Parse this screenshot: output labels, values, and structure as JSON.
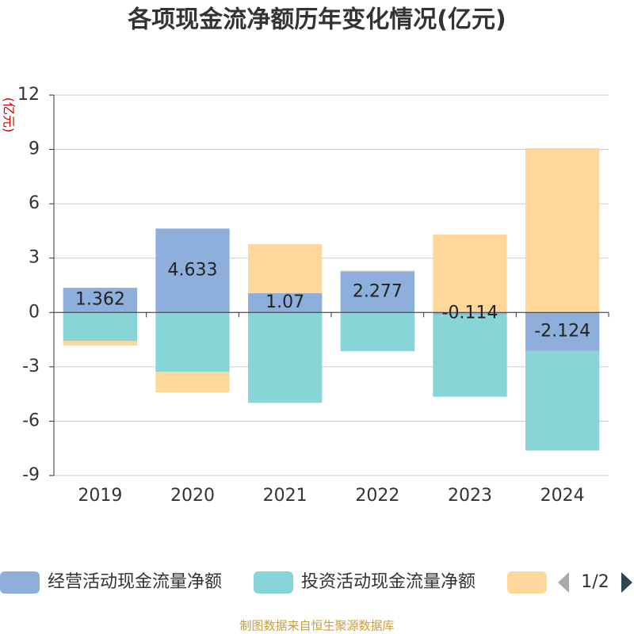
{
  "chart_data": {
    "type": "bar",
    "stacked": true,
    "title": "各项现金流净额历年变化情况(亿元)",
    "y_label": "(亿元)",
    "categories": [
      "2019",
      "2020",
      "2021",
      "2022",
      "2023",
      "2024"
    ],
    "series": [
      {
        "name": "经营活动现金流量净额",
        "color": "#8eaedb",
        "values": [
          1.362,
          4.633,
          1.07,
          2.277,
          -0.114,
          -2.124
        ]
      },
      {
        "name": "投资活动现金流量净额",
        "color": "#88d5d8",
        "values": [
          -1.57,
          -3.27,
          -4.99,
          -2.14,
          -4.54,
          -5.5
        ]
      },
      {
        "color": "#fdd89a",
        "values": [
          -0.26,
          -1.14,
          2.7,
          0.04,
          4.3,
          9.07
        ]
      }
    ],
    "data_labels_series": 0,
    "ylim": [
      -9,
      12
    ],
    "yticks": [
      -9,
      -6,
      -3,
      0,
      3,
      6,
      9,
      12
    ],
    "grid": true,
    "legend_page": "1/2",
    "footer": "制图数据来自恒生聚源数据库"
  }
}
